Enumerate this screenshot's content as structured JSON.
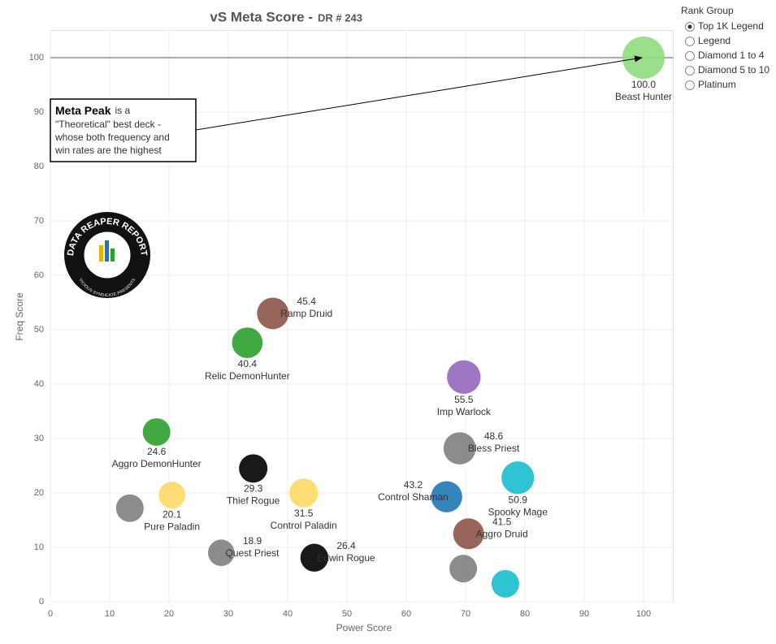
{
  "chart_data": {
    "type": "scatter",
    "title": "vS Meta Score -",
    "subtitle": "DR # 243",
    "x_label": "Power Score",
    "y_label": "Freq Score",
    "xlim": [
      0,
      105
    ],
    "ylim": [
      0,
      105
    ],
    "xticks": [
      0,
      10,
      20,
      30,
      40,
      50,
      60,
      70,
      80,
      90,
      100
    ],
    "yticks": [
      0,
      10,
      20,
      30,
      40,
      50,
      60,
      70,
      80,
      90,
      100
    ],
    "grid": true,
    "reference_y": 100,
    "labels": [
      "Beast Hunter",
      "Ramp Druid",
      "Relic DemonHunter",
      "Imp Warlock",
      "Aggro DemonHunter",
      "Bless Priest",
      "Thief Rogue",
      "Spooky Mage",
      "Pure Paladin",
      "Control Paladin",
      "Control Shaman",
      null,
      "Aggro Druid",
      "Quest Priest",
      "Edwin Rogue",
      null,
      null
    ],
    "x": [
      100,
      37.5,
      33.2,
      69.7,
      17.9,
      69,
      34.2,
      78.8,
      20.5,
      42.7,
      66.8,
      13.4,
      70.5,
      28.8,
      44.5,
      69.6,
      76.7
    ],
    "values": [
      100,
      53,
      47.6,
      41.3,
      31.2,
      28.2,
      24.5,
      22.8,
      19.6,
      20,
      19.3,
      17.2,
      12.5,
      9,
      8.1,
      6.1,
      3.3
    ],
    "scores": [
      100,
      45.4,
      40.4,
      55.5,
      24.6,
      48.6,
      29.3,
      50.9,
      20.1,
      31.5,
      43.2,
      null,
      41.5,
      18.9,
      26.4,
      null,
      null
    ],
    "score_labels": [
      "100.0",
      "45.4",
      "40.4",
      "55.5",
      "24.6",
      "48.6",
      "29.3",
      "50.9",
      "20.1",
      "31.5",
      "43.2",
      null,
      "41.5",
      "18.9",
      "26.4",
      null,
      null
    ],
    "colors": [
      "#8fdc7d",
      "#8c5448",
      "#2ca02c",
      "#9467bd",
      "#2ca02c",
      "#7f7f7f",
      "#000000",
      "#17becf",
      "#ffd966",
      "#ffd966",
      "#1f77b4",
      "#7f7f7f",
      "#8c5448",
      "#7f7f7f",
      "#000000",
      "#7f7f7f",
      "#17becf"
    ],
    "annotation": {
      "bold": "Meta Peak",
      "lines": [
        "is a",
        "\"Theoretical\" best deck -",
        "whose both frequency and",
        "win rates are the highest"
      ]
    },
    "logo": {
      "text": "DATA REAPER REPORT",
      "subtext": "VICIOUS SYNDICATE PRESENTS"
    }
  },
  "rank_group": {
    "title": "Rank Group",
    "options": [
      "Top 1K Legend",
      "Legend",
      "Diamond 1 to 4",
      "Diamond 5 to 10",
      "Platinum"
    ],
    "selected": 0
  }
}
